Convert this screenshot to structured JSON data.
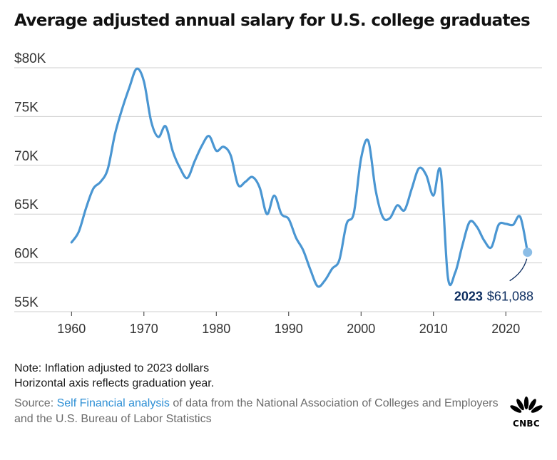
{
  "title": "Average adjusted annual salary for U.S. college graduates",
  "chart_data": {
    "type": "line",
    "title": "Average adjusted annual salary for U.S. college graduates",
    "xlabel": "",
    "ylabel": "",
    "xlim": [
      1958,
      2025
    ],
    "ylim": [
      55000,
      80000
    ],
    "y_ticks": [
      55000,
      60000,
      65000,
      70000,
      75000,
      80000
    ],
    "y_tick_labels": [
      "55K",
      "60K",
      "65K",
      "70K",
      "75K",
      "$80K"
    ],
    "x_ticks": [
      1960,
      1970,
      1980,
      1990,
      2000,
      2010,
      2020
    ],
    "x_tick_labels": [
      "1960",
      "1970",
      "1980",
      "1990",
      "2000",
      "2010",
      "2020"
    ],
    "grid": true,
    "line_color": "#4a96d2",
    "x": [
      1960,
      1961,
      1962,
      1963,
      1964,
      1965,
      1966,
      1967,
      1968,
      1969,
      1970,
      1971,
      1972,
      1973,
      1974,
      1975,
      1976,
      1977,
      1978,
      1979,
      1980,
      1981,
      1982,
      1983,
      1984,
      1985,
      1986,
      1987,
      1988,
      1989,
      1990,
      1991,
      1992,
      1993,
      1994,
      1995,
      1996,
      1997,
      1998,
      1999,
      2000,
      2001,
      2002,
      2003,
      2004,
      2005,
      2006,
      2007,
      2008,
      2009,
      2010,
      2011,
      2012,
      2013,
      2014,
      2015,
      2016,
      2017,
      2018,
      2019,
      2020,
      2021,
      2022,
      2023
    ],
    "values": [
      62100,
      63200,
      65600,
      67600,
      68300,
      69600,
      73200,
      75800,
      78000,
      79900,
      78600,
      74500,
      72900,
      74000,
      71400,
      69700,
      68700,
      70400,
      72000,
      73000,
      71500,
      71900,
      71000,
      68000,
      68300,
      68800,
      67700,
      65000,
      66900,
      65000,
      64500,
      62600,
      61300,
      59300,
      57600,
      58200,
      59400,
      60300,
      64000,
      65100,
      70700,
      72500,
      67500,
      64700,
      64600,
      65900,
      65400,
      67600,
      69700,
      69000,
      66900,
      69400,
      58500,
      59000,
      61800,
      64200,
      63700,
      62300,
      61600,
      63900,
      64000,
      63900,
      64700,
      61088
    ],
    "annotations": [
      {
        "year_label": "2023",
        "value_label": "$61,088",
        "x": 2023,
        "y": 61088
      }
    ]
  },
  "notes": {
    "line1": "Note: Inflation adjusted to 2023 dollars",
    "line2": "Horizontal axis reflects graduation year."
  },
  "source": {
    "prefix": "Source: ",
    "link_text": "Self Financial analysis",
    "suffix": " of data from the National Association of Colleges and Employers and the U.S. Bureau of Labor Statistics"
  },
  "brand": {
    "logo_text": "CNBC"
  }
}
